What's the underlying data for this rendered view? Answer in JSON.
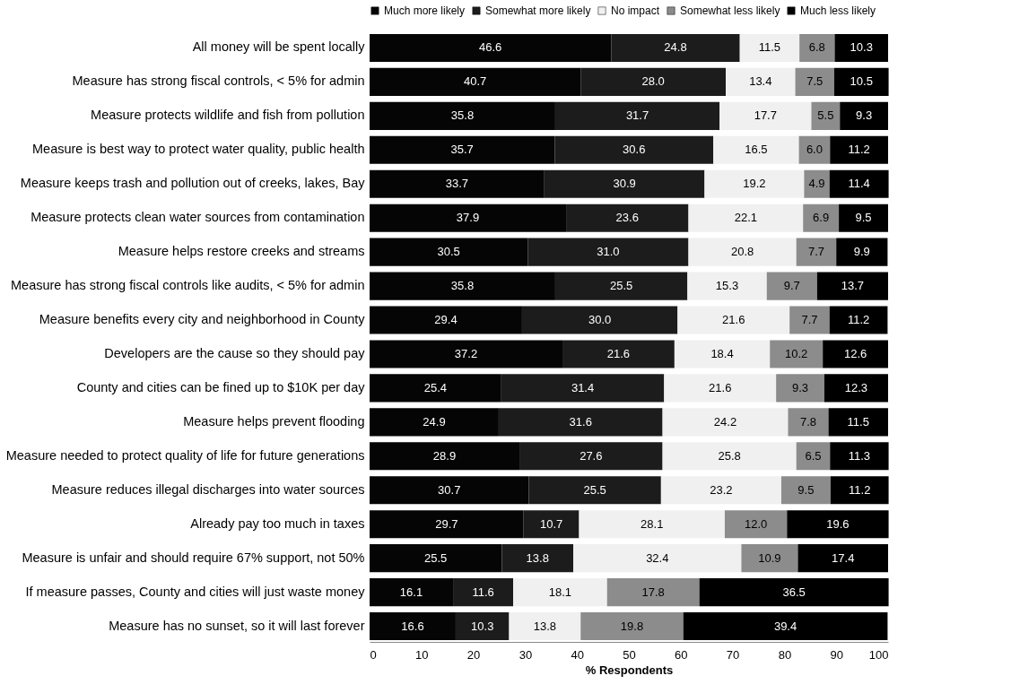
{
  "chart_data": {
    "type": "bar",
    "orientation": "horizontal",
    "stacked": true,
    "xlabel": "% Respondents",
    "xlim": [
      0,
      100
    ],
    "xticks": [
      0,
      10,
      20,
      30,
      40,
      50,
      60,
      70,
      80,
      90,
      100
    ],
    "legend": "top",
    "grid": false,
    "categories": [
      "All money will be spent locally",
      "Measure has strong fiscal controls, < 5% for admin",
      "Measure protects wildlife and fish from pollution",
      "Measure is best way to protect water quality, public health",
      "Measure keeps trash and pollution out of creeks, lakes, Bay",
      "Measure protects clean water sources from contamination",
      "Measure helps restore creeks and streams",
      "Measure has strong fiscal controls like audits, < 5% for admin",
      "Measure benefits every city and neighborhood in County",
      "Developers are the cause so they should pay",
      "County and cities can be fined up to $10K per day",
      "Measure helps prevent flooding",
      "Measure needed to protect quality of life for future generations",
      "Measure reduces illegal discharges into water sources",
      "Already pay too much in taxes",
      "Measure is unfair and should require 67% support, not 50%",
      "If measure passes, County and cities will just waste money",
      "Measure has no sunset, so it will last forever"
    ],
    "series": [
      {
        "name": "Much more likely",
        "color": "#050505",
        "values": [
          46.6,
          40.7,
          35.8,
          35.7,
          33.7,
          37.9,
          30.5,
          35.8,
          29.4,
          37.2,
          25.4,
          24.9,
          28.9,
          30.7,
          29.7,
          25.5,
          16.1,
          16.6
        ],
        "value_labels": [
          "46.6",
          "40.7",
          "35.8",
          "35.7",
          "33.7",
          "37.9",
          "30.5",
          "35.8",
          "29.4",
          "37.2",
          "25.4",
          "24.9",
          "28.9",
          "30.7",
          "29.7",
          "25.5",
          "16.1",
          "16.6"
        ]
      },
      {
        "name": "Somewhat more likely",
        "color": "#1c1c1c",
        "values": [
          24.8,
          28.0,
          31.7,
          30.6,
          30.9,
          23.6,
          31.0,
          25.5,
          30.0,
          21.6,
          31.4,
          31.6,
          27.6,
          25.5,
          10.7,
          13.8,
          11.6,
          10.3
        ],
        "value_labels": [
          "24.8",
          "28.0",
          "31.7",
          "30.6",
          "30.9",
          "23.6",
          "31.0",
          "25.5",
          "30.0",
          "21.6",
          "31.4",
          "31.6",
          "27.6",
          "25.5",
          "10.7",
          "13.8",
          "11.6",
          "10.3"
        ]
      },
      {
        "name": "No impact",
        "color": "#f0f0f0",
        "values": [
          11.5,
          13.4,
          17.7,
          16.5,
          19.2,
          22.1,
          20.8,
          15.3,
          21.6,
          18.4,
          21.6,
          24.2,
          25.8,
          23.2,
          28.1,
          32.4,
          18.1,
          13.8
        ],
        "value_labels": [
          "11.5",
          "13.4",
          "17.7",
          "16.5",
          "19.2",
          "22.1",
          "20.8",
          "15.3",
          "21.6",
          "18.4",
          "21.6",
          "24.2",
          "25.8",
          "23.2",
          "28.1",
          "32.4",
          "18.1",
          "13.8"
        ]
      },
      {
        "name": "Somewhat less likely",
        "color": "#8c8c8c",
        "values": [
          6.8,
          7.5,
          5.5,
          6.0,
          4.9,
          6.9,
          7.7,
          9.7,
          7.7,
          10.2,
          9.3,
          7.8,
          6.5,
          9.5,
          12.0,
          10.9,
          17.8,
          19.8
        ],
        "value_labels": [
          "6.8",
          "7.5",
          "5.5",
          "6.0",
          "4.9",
          "6.9",
          "7.7",
          "9.7",
          "7.7",
          "10.2",
          "9.3",
          "7.8",
          "6.5",
          "9.5",
          "12.0",
          "10.9",
          "17.8",
          "19.8"
        ]
      },
      {
        "name": "Much less likely",
        "color": "#000000",
        "values": [
          10.3,
          10.5,
          9.3,
          11.2,
          11.4,
          9.5,
          9.9,
          13.7,
          11.2,
          12.6,
          12.3,
          11.5,
          11.3,
          11.2,
          19.6,
          17.4,
          36.5,
          39.4
        ],
        "value_labels": [
          "10.3",
          "10.5",
          "9.3",
          "11.2",
          "11.4",
          "9.5",
          "9.9",
          "13.7",
          "11.2",
          "12.6",
          "12.3",
          "11.5",
          "11.3",
          "11.2",
          "19.6",
          "17.4",
          "36.5",
          "39.4"
        ]
      }
    ]
  }
}
